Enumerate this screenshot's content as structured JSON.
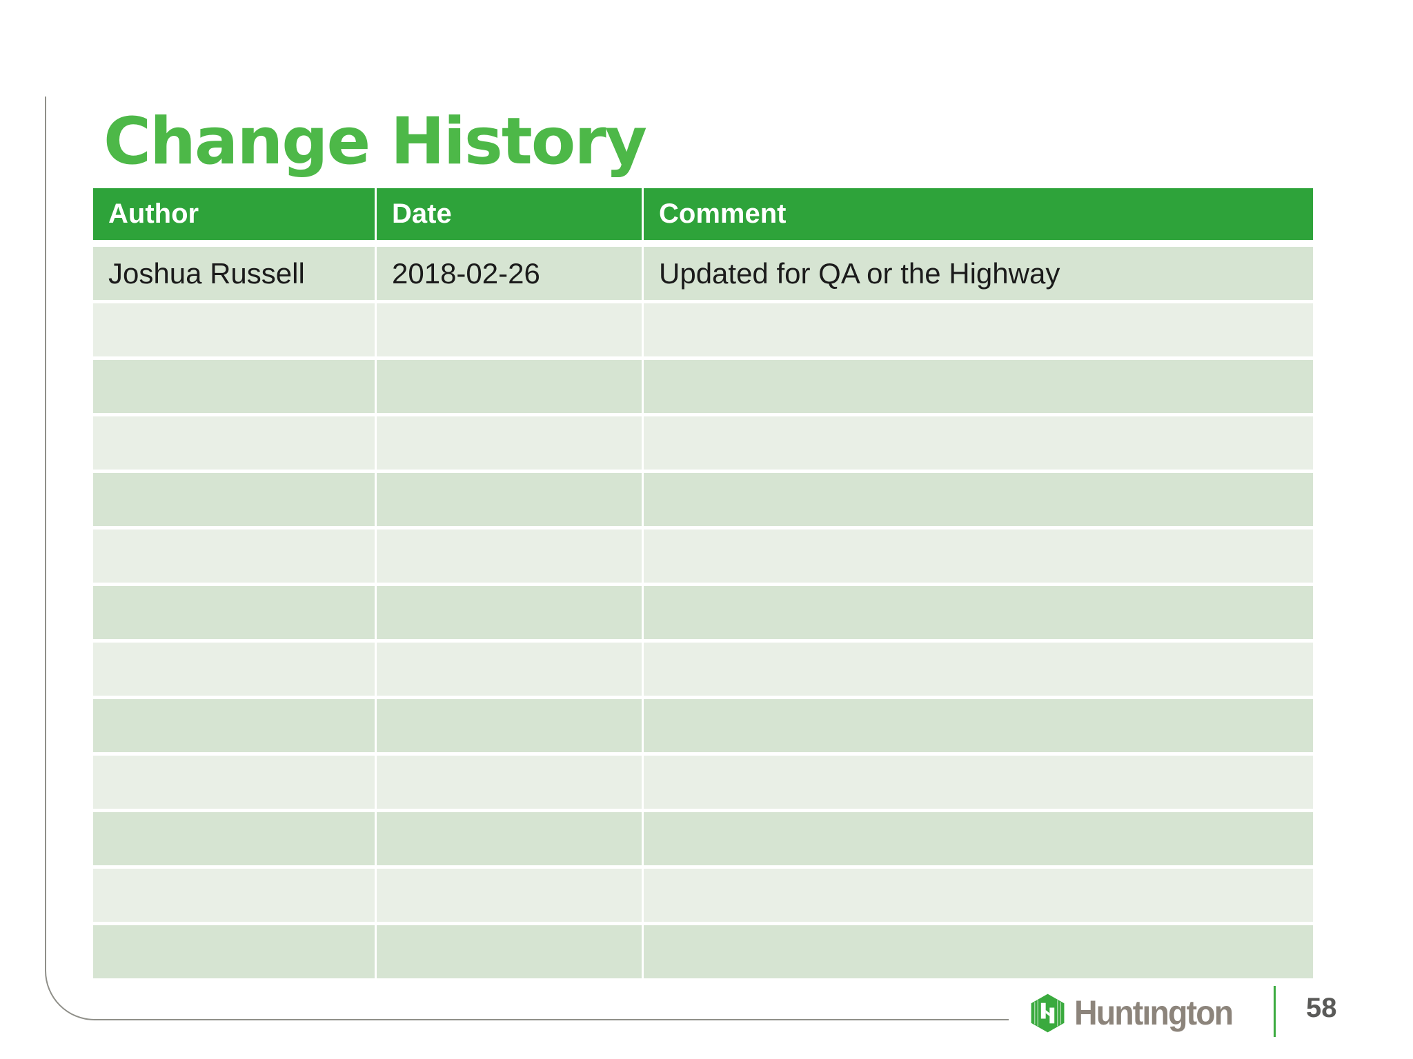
{
  "slide": {
    "title": "Change History",
    "page_number": "58",
    "brand_name": "Huntıngton"
  },
  "table": {
    "headers": [
      "Author",
      "Date",
      "Comment"
    ],
    "rows": [
      {
        "author": "Joshua Russell",
        "date": "2018-02-26",
        "comment": "Updated for QA or the Highway"
      },
      {
        "author": "",
        "date": "",
        "comment": ""
      },
      {
        "author": "",
        "date": "",
        "comment": ""
      },
      {
        "author": "",
        "date": "",
        "comment": ""
      },
      {
        "author": "",
        "date": "",
        "comment": ""
      },
      {
        "author": "",
        "date": "",
        "comment": ""
      },
      {
        "author": "",
        "date": "",
        "comment": ""
      },
      {
        "author": "",
        "date": "",
        "comment": ""
      },
      {
        "author": "",
        "date": "",
        "comment": ""
      },
      {
        "author": "",
        "date": "",
        "comment": ""
      },
      {
        "author": "",
        "date": "",
        "comment": ""
      },
      {
        "author": "",
        "date": "",
        "comment": ""
      },
      {
        "author": "",
        "date": "",
        "comment": ""
      }
    ]
  },
  "colors": {
    "title_green": "#4db848",
    "header_green": "#2ea33a",
    "row_band_dark": "#d6e4d2",
    "row_band_light": "#e9efe6",
    "brand_logo_green": "#3aaa3e",
    "brand_word_gray": "#8c847b",
    "page_number_gray": "#5a5a58",
    "frame_border_gray": "#8f8f89"
  }
}
